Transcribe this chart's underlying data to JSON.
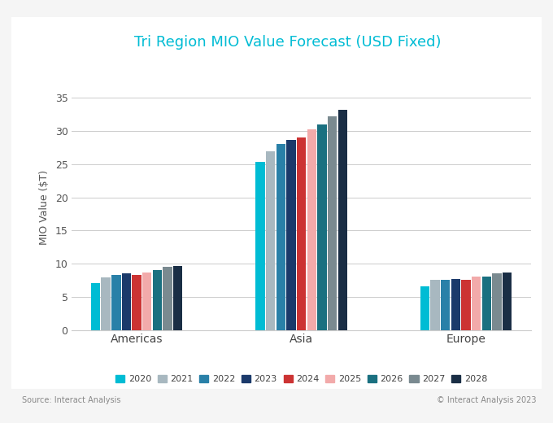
{
  "title": "Tri Region MIO Value Forecast (USD Fixed)",
  "ylabel": "MIO Value ($T)",
  "regions": [
    "Americas",
    "Asia",
    "Europe"
  ],
  "years": [
    "2020",
    "2021",
    "2022",
    "2023",
    "2024",
    "2025",
    "2026",
    "2027",
    "2028"
  ],
  "colors": {
    "2020": "#00BCD4",
    "2021": "#A8B8C0",
    "2022": "#2980A8",
    "2023": "#1B3A6B",
    "2024": "#CC3333",
    "2025": "#F2AAAA",
    "2026": "#1A7080",
    "2027": "#7A8A90",
    "2028": "#1A2E45"
  },
  "data": {
    "Americas": [
      7.1,
      7.9,
      8.3,
      8.5,
      8.3,
      8.7,
      9.0,
      9.5,
      9.7
    ],
    "Asia": [
      25.3,
      27.0,
      28.1,
      28.7,
      29.0,
      30.2,
      31.0,
      32.2,
      33.2
    ],
    "Europe": [
      6.6,
      7.5,
      7.6,
      7.7,
      7.6,
      8.0,
      8.1,
      8.5,
      8.7
    ]
  },
  "ylim": [
    0,
    37
  ],
  "yticks": [
    0,
    5,
    10,
    15,
    20,
    25,
    30,
    35
  ],
  "source_text": "Source: Interact Analysis",
  "copyright_text": "© Interact Analysis 2023",
  "title_color": "#00BCD4",
  "background_color": "#FFFFFF",
  "grid_color": "#CCCCCC",
  "outer_bg": "#F5F5F5"
}
